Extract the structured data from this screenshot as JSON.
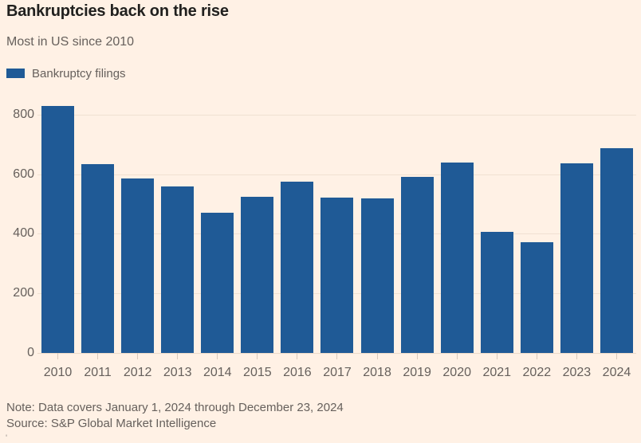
{
  "header": {
    "title": "Bankruptcies back on the rise",
    "subtitle": "Most in US since 2010"
  },
  "legend": {
    "label": "Bankruptcy filings"
  },
  "chart_data": {
    "type": "bar",
    "title": "Bankruptcies back on the rise",
    "subtitle": "Most in US since 2010",
    "legend_entries": [
      "Bankruptcy filings"
    ],
    "legend_position": "top-left",
    "categories": [
      "2010",
      "2011",
      "2012",
      "2013",
      "2014",
      "2015",
      "2016",
      "2017",
      "2018",
      "2019",
      "2020",
      "2021",
      "2022",
      "2023",
      "2024"
    ],
    "values": [
      828,
      634,
      586,
      558,
      471,
      524,
      576,
      520,
      518,
      590,
      638,
      406,
      372,
      636,
      686
    ],
    "xlabel": "",
    "ylabel": "",
    "yticks": [
      0,
      200,
      400,
      600,
      800
    ],
    "ylim": [
      0,
      850
    ],
    "grid": true,
    "bar_color": "#1F5A96",
    "background_color": "#FFF1E5",
    "text_primary_color": "#21201E",
    "text_secondary_color": "#66605C"
  },
  "footer": {
    "note": "Note: Data covers January 1, 2024 through December 23, 2024",
    "source": "Source: S&P Global Market Intelligence",
    "stray_mark": "'"
  }
}
